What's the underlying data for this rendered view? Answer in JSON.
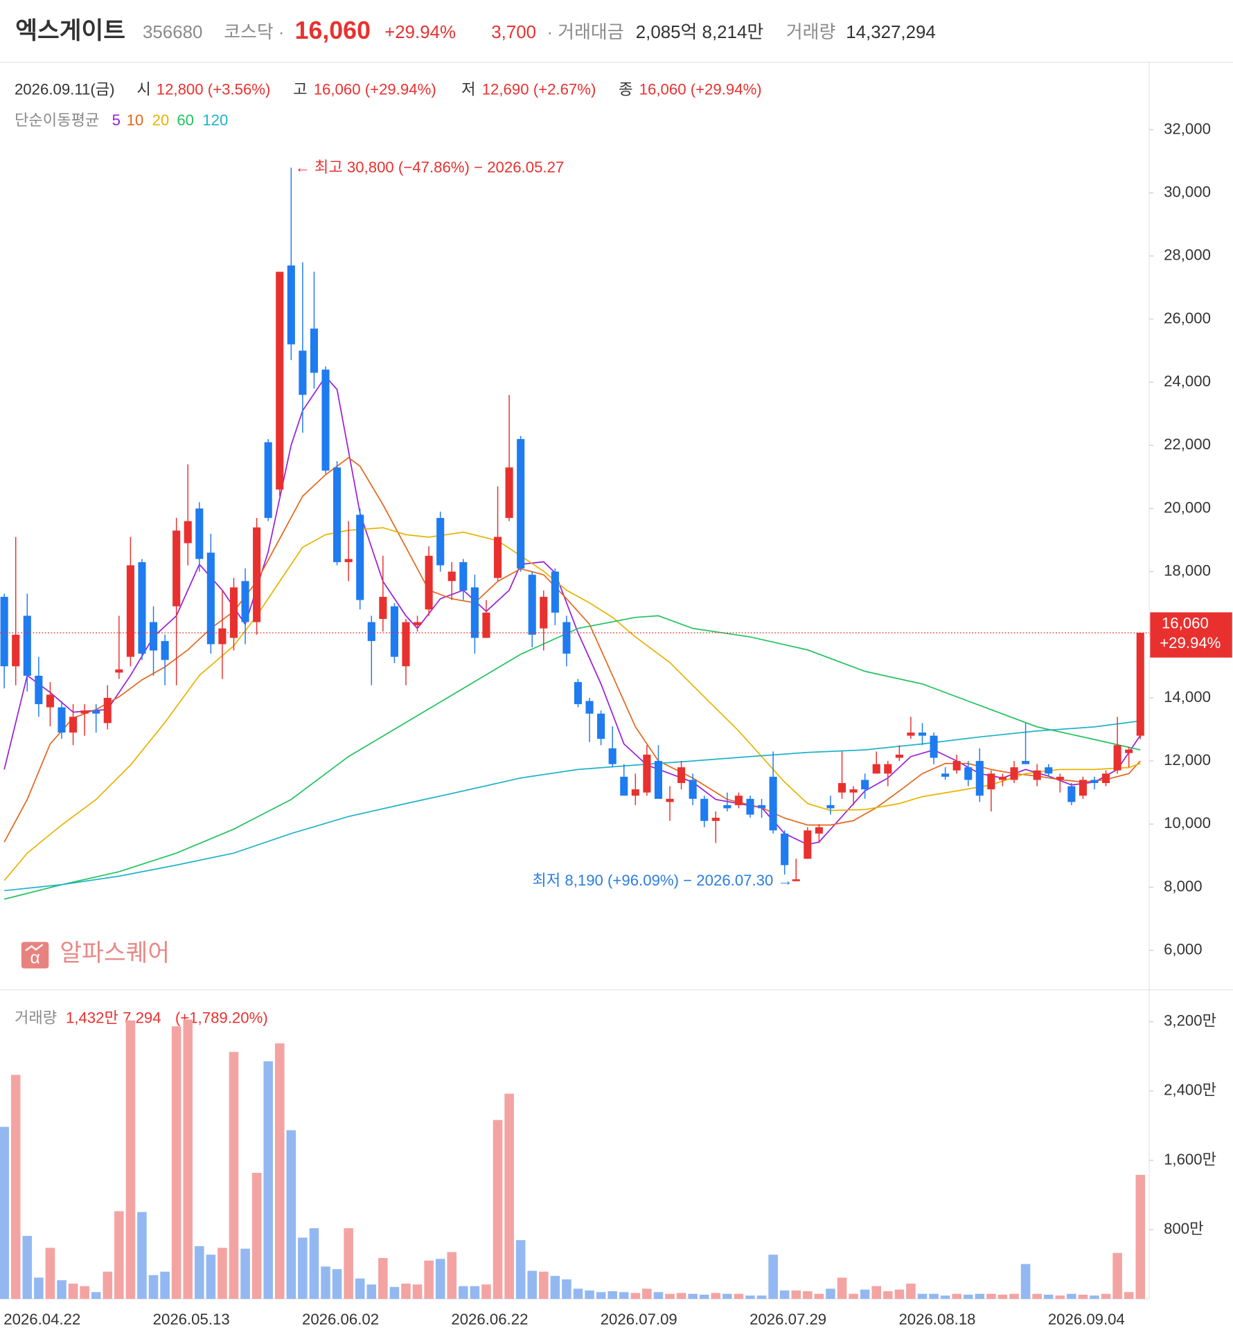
{
  "header": {
    "name": "엑스게이트",
    "code": "356680",
    "market": "코스닥 ·",
    "price": "16,060",
    "change_pct": "+29.94%",
    "change": "3,700",
    "trading_value_label": "· 거래대금",
    "trading_value": "2,085억 8,214만",
    "volume_label": "거래량",
    "volume": "14,327,294"
  },
  "ohlc_legend": {
    "date": "2026.09.11(금)",
    "open_label": "시",
    "open": "12,800 (+3.56%)",
    "high_label": "고",
    "high": "16,060 (+29.94%)",
    "low_label": "저",
    "low": "12,690 (+2.67%)",
    "close_label": "종",
    "close": "16,060 (+29.94%)"
  },
  "logo": {
    "icon": "α",
    "text": "알파스퀘어"
  },
  "volume_legend": {
    "label": "거래량",
    "value": "1,432만 7,294",
    "change": "(+1,789.20%)"
  },
  "chart_data": [
    {
      "type": "candlestick",
      "up_color": "#e8312f",
      "down_color": "#1f7bf0",
      "ylim": [
        4750,
        34057
      ],
      "yticks": [
        {
          "value": 6000,
          "label": "6,000"
        },
        {
          "value": 8000,
          "label": "8,000"
        },
        {
          "value": 10000,
          "label": "10,000"
        },
        {
          "value": 12000,
          "label": "12,000"
        },
        {
          "value": 14000,
          "label": "14,000"
        },
        {
          "value": 16000,
          "label": "16,000"
        },
        {
          "value": 18000,
          "label": "18,000"
        },
        {
          "value": 20000,
          "label": "20,000"
        },
        {
          "value": 22000,
          "label": "22,000"
        },
        {
          "value": 24000,
          "label": "24,000"
        },
        {
          "value": 26000,
          "label": "26,000"
        },
        {
          "value": 28000,
          "label": "28,000"
        },
        {
          "value": 30000,
          "label": "30,000"
        },
        {
          "value": 32000,
          "label": "32,000"
        }
      ],
      "open": [
        17200,
        15000,
        16600,
        14700,
        13700,
        13700,
        12900,
        13500,
        13600,
        13200,
        14800,
        15300,
        18300,
        16400,
        15800,
        16900,
        18900,
        20000,
        18600,
        15700,
        15900,
        17700,
        16400,
        22100,
        20600,
        27700,
        25000,
        25700,
        24400,
        21300,
        18300,
        19800,
        16400,
        16500,
        16900,
        15000,
        16300,
        16800,
        19700,
        17700,
        18300,
        17500,
        15900,
        17800,
        19700,
        22200,
        17900,
        16200,
        18000,
        16400,
        14500,
        13900,
        13500,
        12400,
        11500,
        10900,
        11000,
        12000,
        10700,
        11300,
        11400,
        10800,
        10100,
        10600,
        10600,
        10800,
        10600,
        11500,
        9700,
        8190,
        8900,
        9700,
        10600,
        11000,
        11000,
        11400,
        11600,
        11600,
        12100,
        12800,
        12900,
        12800,
        11600,
        11700,
        11800,
        12000,
        11100,
        11400,
        11400,
        12000,
        11400,
        11800,
        11400,
        11200,
        10900,
        11400,
        11300,
        11700,
        12250,
        12800
      ],
      "high": [
        17300,
        19100,
        17300,
        15300,
        14500,
        13900,
        13800,
        13800,
        13800,
        14400,
        16600,
        19100,
        18400,
        16900,
        16000,
        19700,
        21400,
        20200,
        19200,
        17400,
        17800,
        18100,
        19700,
        22200,
        27500,
        30800,
        27800,
        27500,
        24500,
        21500,
        19600,
        20000,
        16600,
        18500,
        17000,
        16500,
        16600,
        18800,
        19900,
        18300,
        18400,
        17900,
        17100,
        20700,
        23600,
        22300,
        18000,
        17400,
        18100,
        16600,
        14600,
        14000,
        13600,
        13100,
        11900,
        11600,
        12500,
        12500,
        11200,
        12000,
        11600,
        10900,
        10400,
        11000,
        11000,
        10900,
        10800,
        12300,
        9800,
        8900,
        9900,
        10000,
        10900,
        12300,
        11200,
        11600,
        12300,
        12000,
        12500,
        13400,
        13200,
        12900,
        11800,
        12200,
        12000,
        12400,
        11700,
        11600,
        12000,
        13200,
        11900,
        11900,
        11600,
        11300,
        11500,
        11500,
        11700,
        13400,
        12450,
        16060
      ],
      "low": [
        14300,
        14400,
        14200,
        13400,
        13100,
        12700,
        12500,
        12800,
        12900,
        13000,
        14600,
        15000,
        15200,
        14700,
        14400,
        14400,
        18200,
        18000,
        15400,
        14600,
        15500,
        15700,
        16000,
        19600,
        20400,
        24700,
        22400,
        23800,
        21100,
        18200,
        17700,
        16800,
        14400,
        16100,
        15100,
        14400,
        16100,
        16600,
        18000,
        17100,
        17100,
        15400,
        15900,
        17700,
        19600,
        18000,
        15600,
        15500,
        16300,
        15000,
        13700,
        12600,
        12500,
        11800,
        10900,
        10600,
        10900,
        10800,
        10100,
        11100,
        10600,
        9900,
        9400,
        10400,
        10500,
        10200,
        10200,
        9700,
        8400,
        8190,
        8900,
        9400,
        10300,
        10800,
        10600,
        10800,
        11600,
        11200,
        12000,
        12700,
        12500,
        11900,
        11400,
        11600,
        11200,
        10700,
        10400,
        11200,
        11300,
        11900,
        11200,
        11500,
        11000,
        10600,
        10800,
        11100,
        11200,
        11600,
        11800,
        12690
      ],
      "close": [
        15000,
        16000,
        14700,
        13800,
        14100,
        12900,
        13400,
        13600,
        13500,
        14000,
        14900,
        18200,
        15400,
        15500,
        15200,
        19300,
        19600,
        18400,
        15700,
        16200,
        17500,
        16400,
        19400,
        19700,
        27500,
        25200,
        23600,
        24300,
        21200,
        18300,
        18400,
        17100,
        15800,
        17200,
        15300,
        16400,
        16400,
        18500,
        18200,
        18000,
        17400,
        15900,
        16700,
        19100,
        21300,
        18100,
        16000,
        17200,
        16700,
        15400,
        13800,
        13500,
        12700,
        11900,
        10900,
        11100,
        12200,
        10800,
        10800,
        11800,
        10800,
        10100,
        10200,
        10500,
        10900,
        10300,
        10500,
        9800,
        8700,
        8250,
        9800,
        9900,
        10500,
        11300,
        11100,
        11100,
        11900,
        11900,
        12200,
        12900,
        12800,
        12100,
        11500,
        12000,
        11400,
        10900,
        11600,
        11500,
        11800,
        11900,
        11700,
        11600,
        11500,
        10700,
        11400,
        11300,
        11600,
        12500,
        12360,
        16060
      ],
      "moving_average_label": "단순이동평균",
      "moving_averages": [
        {
          "name": "5",
          "color": "#9a1fd8",
          "x": [
            0,
            2,
            4,
            6,
            9,
            11,
            13,
            15,
            17,
            19,
            21,
            23,
            25,
            26,
            28,
            29,
            31,
            33,
            35,
            36,
            38,
            40,
            42,
            44,
            45,
            47,
            48,
            50,
            52,
            54,
            56,
            58,
            60,
            62,
            64,
            66,
            68,
            70,
            71,
            73,
            75,
            77,
            79,
            81,
            83,
            85,
            87,
            89,
            91,
            93,
            95,
            97,
            99
          ],
          "values": [
            11730,
            14710,
            14170,
            13545,
            13630,
            14710,
            15930,
            16600,
            18230,
            17410,
            16330,
            18630,
            22010,
            23100,
            24180,
            23770,
            19850,
            17690,
            16600,
            16200,
            17140,
            17410,
            16740,
            17410,
            18230,
            18310,
            17960,
            16060,
            14440,
            12540,
            11870,
            11600,
            11330,
            10780,
            10650,
            10520,
            9700,
            9350,
            9430,
            10240,
            11050,
            11460,
            12140,
            12350,
            12000,
            11600,
            11460,
            11730,
            11520,
            11240,
            11330,
            11730,
            12810
          ]
        },
        {
          "name": "10",
          "color": "#e5661c",
          "x": [
            0,
            2,
            4,
            6,
            8,
            10,
            12,
            14,
            16,
            18,
            20,
            22,
            24,
            26,
            28,
            30,
            31,
            33,
            35,
            37,
            39,
            41,
            43,
            45,
            47,
            49,
            51,
            53,
            55,
            57,
            60,
            63,
            66,
            68,
            70,
            72,
            74,
            76,
            78,
            80,
            82,
            84,
            86,
            88,
            90,
            92,
            94,
            96,
            98,
            99
          ],
          "values": [
            9430,
            10780,
            12540,
            13360,
            13630,
            14030,
            14570,
            14980,
            15520,
            16200,
            16740,
            17690,
            19040,
            20390,
            21070,
            21610,
            21340,
            20120,
            18770,
            17410,
            17140,
            17010,
            17690,
            18090,
            17900,
            17140,
            16330,
            14710,
            13080,
            12000,
            11460,
            10780,
            10520,
            10190,
            9970,
            9970,
            10110,
            10520,
            11050,
            11600,
            11920,
            11920,
            11730,
            11600,
            11520,
            11410,
            11330,
            11410,
            11600,
            12000
          ]
        },
        {
          "name": "20",
          "color": "#e6b400",
          "x": [
            0,
            2,
            5,
            8,
            11,
            14,
            17,
            20,
            22,
            24,
            26,
            28,
            30,
            33,
            35,
            37,
            40,
            43,
            45,
            47,
            49,
            51,
            53,
            55,
            58,
            61,
            64,
            66,
            68,
            70,
            72,
            75,
            78,
            80,
            83,
            86,
            89,
            92,
            95,
            98,
            99
          ],
          "values": [
            8210,
            9080,
            9970,
            10780,
            11870,
            13220,
            14710,
            15650,
            16600,
            17690,
            18770,
            19170,
            19310,
            19390,
            19170,
            19090,
            19250,
            18980,
            18500,
            18010,
            17410,
            17010,
            16550,
            15930,
            15120,
            14030,
            12950,
            12140,
            11330,
            10650,
            10430,
            10460,
            10650,
            10870,
            11050,
            11240,
            11600,
            11730,
            11730,
            11790,
            11920
          ]
        },
        {
          "name": "60",
          "color": "#22c25f",
          "x": [
            0,
            5,
            10,
            15,
            20,
            25,
            30,
            35,
            40,
            45,
            50,
            55,
            57,
            60,
            65,
            70,
            75,
            80,
            85,
            90,
            95,
            99
          ],
          "values": [
            7620,
            8080,
            8490,
            9080,
            9840,
            10780,
            12140,
            13220,
            14300,
            15380,
            16200,
            16550,
            16600,
            16200,
            15930,
            15520,
            14840,
            14440,
            13760,
            13080,
            12680,
            12350
          ]
        },
        {
          "name": "120",
          "color": "#1eb2c9",
          "x": [
            0,
            5,
            10,
            15,
            20,
            25,
            30,
            35,
            40,
            45,
            50,
            55,
            60,
            65,
            70,
            75,
            80,
            85,
            90,
            95,
            99
          ],
          "values": [
            7890,
            8080,
            8350,
            8700,
            9080,
            9700,
            10240,
            10650,
            11050,
            11460,
            11730,
            11870,
            12000,
            12140,
            12270,
            12350,
            12540,
            12760,
            12950,
            13080,
            13270
          ]
        }
      ],
      "annotations": [
        "← 최고 30,800 (−47.86%) − 2026.05.27",
        "최저 8,190 (+96.09%) − 2026.07.30 →"
      ],
      "price_tag": {
        "price": "16,060",
        "change": "+29.94%"
      }
    },
    {
      "type": "bar",
      "up_color": "#f4a3a3",
      "down_color": "#93b8f1",
      "categories": [
        null,
        null,
        null,
        "2026.04.22",
        null,
        null,
        null,
        null,
        null,
        null,
        null,
        null,
        null,
        null,
        null,
        null,
        "2026.05.13",
        null,
        null,
        null,
        null,
        null,
        null,
        null,
        null,
        null,
        null,
        null,
        null,
        "2026.06.02",
        null,
        null,
        null,
        null,
        null,
        null,
        null,
        null,
        null,
        null,
        null,
        null,
        "2026.06.22",
        null,
        null,
        null,
        null,
        null,
        null,
        null,
        null,
        null,
        null,
        null,
        null,
        "2026.07.09",
        null,
        null,
        null,
        null,
        null,
        null,
        null,
        null,
        null,
        null,
        null,
        null,
        "2026.07.29",
        null,
        null,
        null,
        null,
        null,
        null,
        null,
        null,
        null,
        null,
        null,
        null,
        "2026.08.18",
        null,
        null,
        null,
        null,
        null,
        null,
        null,
        null,
        null,
        null,
        null,
        null,
        "2026.09.04",
        null,
        null,
        null,
        null,
        null
      ],
      "values": [
        1987,
        2587,
        728,
        246,
        590,
        216,
        177,
        148,
        79,
        315,
        1013,
        3216,
        1003,
        275,
        315,
        3148,
        3226,
        610,
        511,
        590,
        2852,
        580,
        1456,
        2744,
        2951,
        1948,
        708,
        816,
        374,
        344,
        816,
        236,
        167,
        472,
        138,
        177,
        167,
        443,
        462,
        541,
        148,
        148,
        167,
        2066,
        2370,
        679,
        325,
        315,
        266,
        226,
        118,
        98,
        79,
        89,
        79,
        69,
        118,
        79,
        59,
        69,
        59,
        49,
        69,
        59,
        59,
        39,
        39,
        511,
        98,
        98,
        89,
        59,
        118,
        246,
        59,
        108,
        148,
        89,
        108,
        177,
        59,
        59,
        39,
        59,
        49,
        59,
        59,
        49,
        59,
        403,
        59,
        49,
        39,
        59,
        49,
        39,
        59,
        531,
        79,
        1432.7294
      ],
      "ylim": [
        0,
        3550
      ],
      "yticks": [
        {
          "value": 800,
          "label": "800만"
        },
        {
          "value": 1600,
          "label": "1,600만"
        },
        {
          "value": 2400,
          "label": "2,400만"
        },
        {
          "value": 3200,
          "label": "3,200만"
        }
      ]
    }
  ]
}
